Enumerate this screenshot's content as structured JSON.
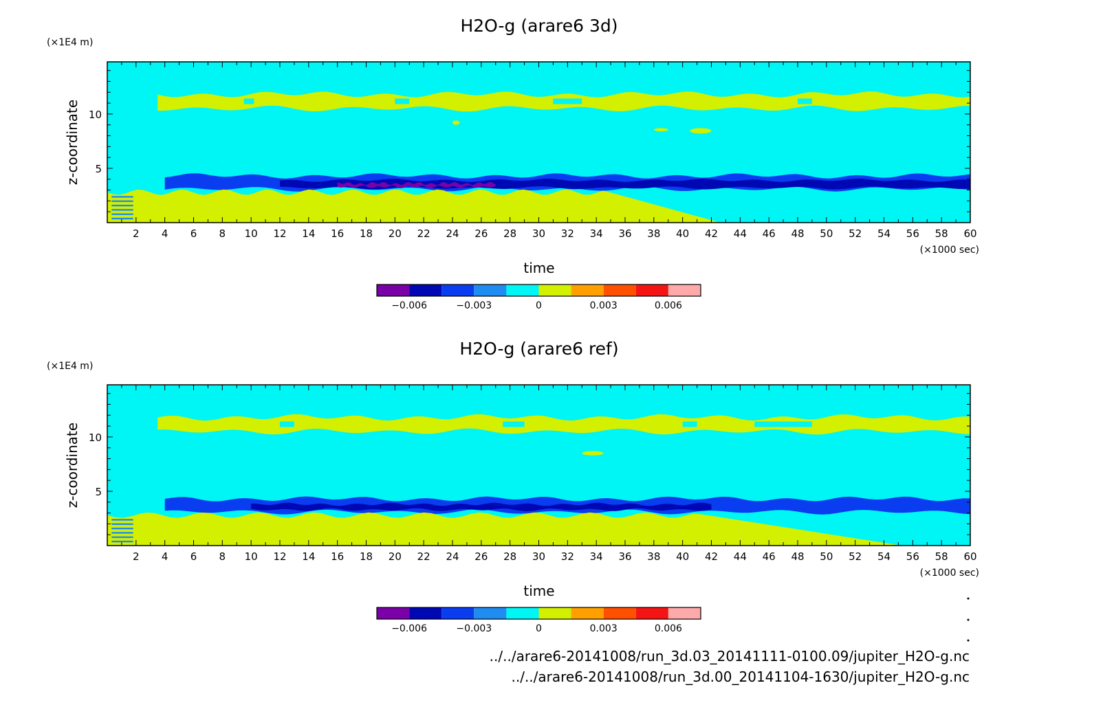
{
  "colors": {
    "colorbar": [
      "#7a00a8",
      "#0008b4",
      "#0a3cf0",
      "#1e8cf0",
      "#00f5f5",
      "#d2f000",
      "#ffa000",
      "#ff5000",
      "#f51414",
      "#ffaaaa"
    ],
    "background_level": "#00f5f5"
  },
  "chart_data": [
    {
      "type": "heatmap",
      "title": "H2O-g (arare6 3d)",
      "xlabel": "time",
      "ylabel": "z-coordinate",
      "x_unit": "(×1000 sec)",
      "y_unit": "(×1E4 m)",
      "xlim": [
        0,
        60
      ],
      "ylim": [
        0,
        14.8
      ],
      "x_ticks": [
        "2",
        "4",
        "6",
        "8",
        "10",
        "12",
        "14",
        "16",
        "18",
        "20",
        "22",
        "24",
        "26",
        "28",
        "30",
        "32",
        "34",
        "36",
        "38",
        "40",
        "42",
        "44",
        "46",
        "48",
        "50",
        "52",
        "54",
        "56",
        "58",
        "60"
      ],
      "y_ticks": [
        "5",
        "10"
      ],
      "colorbar_levels": [
        -0.0075,
        -0.006,
        -0.0045,
        -0.003,
        -0.0015,
        0,
        0.0015,
        0.003,
        0.0045,
        0.006,
        0.0075
      ],
      "colorbar_labels": [
        "−0.006",
        "−0.003",
        "0",
        "0.003",
        "0.006"
      ],
      "regions": [
        {
          "level": "positive_small",
          "x": [
            3.5,
            60
          ],
          "z": [
            10.5,
            11.8
          ],
          "note": "upper yellow band"
        },
        {
          "level": "negative_mid",
          "x": [
            4,
            60
          ],
          "z": [
            3.1,
            4.3
          ],
          "note": "blue band"
        },
        {
          "level": "negative_large",
          "x": [
            12,
            60
          ],
          "z": [
            3.2,
            3.9
          ],
          "note": "dark blue core"
        },
        {
          "level": "negative_peak",
          "x": [
            16,
            27
          ],
          "z": [
            3.3,
            3.6
          ],
          "note": "purple spots"
        },
        {
          "level": "positive_small",
          "x": [
            0,
            42.5
          ],
          "z": [
            0,
            2.9
          ],
          "note": "lower yellow region"
        }
      ]
    },
    {
      "type": "heatmap",
      "title": "H2O-g (arare6 ref)",
      "xlabel": "time",
      "ylabel": "z-coordinate",
      "x_unit": "(×1000 sec)",
      "y_unit": "(×1E4 m)",
      "xlim": [
        0,
        60
      ],
      "ylim": [
        0,
        14.8
      ],
      "x_ticks": [
        "2",
        "4",
        "6",
        "8",
        "10",
        "12",
        "14",
        "16",
        "18",
        "20",
        "22",
        "24",
        "26",
        "28",
        "30",
        "32",
        "34",
        "36",
        "38",
        "40",
        "42",
        "44",
        "46",
        "48",
        "50",
        "52",
        "54",
        "56",
        "58",
        "60"
      ],
      "y_ticks": [
        "5",
        "10"
      ],
      "colorbar_levels": [
        -0.0075,
        -0.006,
        -0.0045,
        -0.003,
        -0.0015,
        0,
        0.0015,
        0.003,
        0.0045,
        0.006,
        0.0075
      ],
      "colorbar_labels": [
        "−0.006",
        "−0.003",
        "0",
        "0.003",
        "0.006"
      ],
      "regions": [
        {
          "level": "positive_small",
          "x": [
            3.5,
            60
          ],
          "z": [
            10.5,
            11.8
          ],
          "note": "upper yellow band"
        },
        {
          "level": "negative_mid",
          "x": [
            4,
            60
          ],
          "z": [
            3.1,
            4.3
          ],
          "note": "blue band"
        },
        {
          "level": "negative_large",
          "x": [
            10,
            42
          ],
          "z": [
            3.3,
            3.8
          ],
          "note": "dark blue core"
        },
        {
          "level": "positive_small",
          "x": [
            0,
            55
          ],
          "z": [
            0,
            2.9
          ],
          "note": "lower yellow region"
        }
      ]
    }
  ],
  "footer": {
    "line1": "../../arare6-20141008/run_3d.03_20141111-0100.09/jupiter_H2O-g.nc",
    "line2": "../../arare6-20141008/run_3d.00_20141104-1630/jupiter_H2O-g.nc"
  }
}
